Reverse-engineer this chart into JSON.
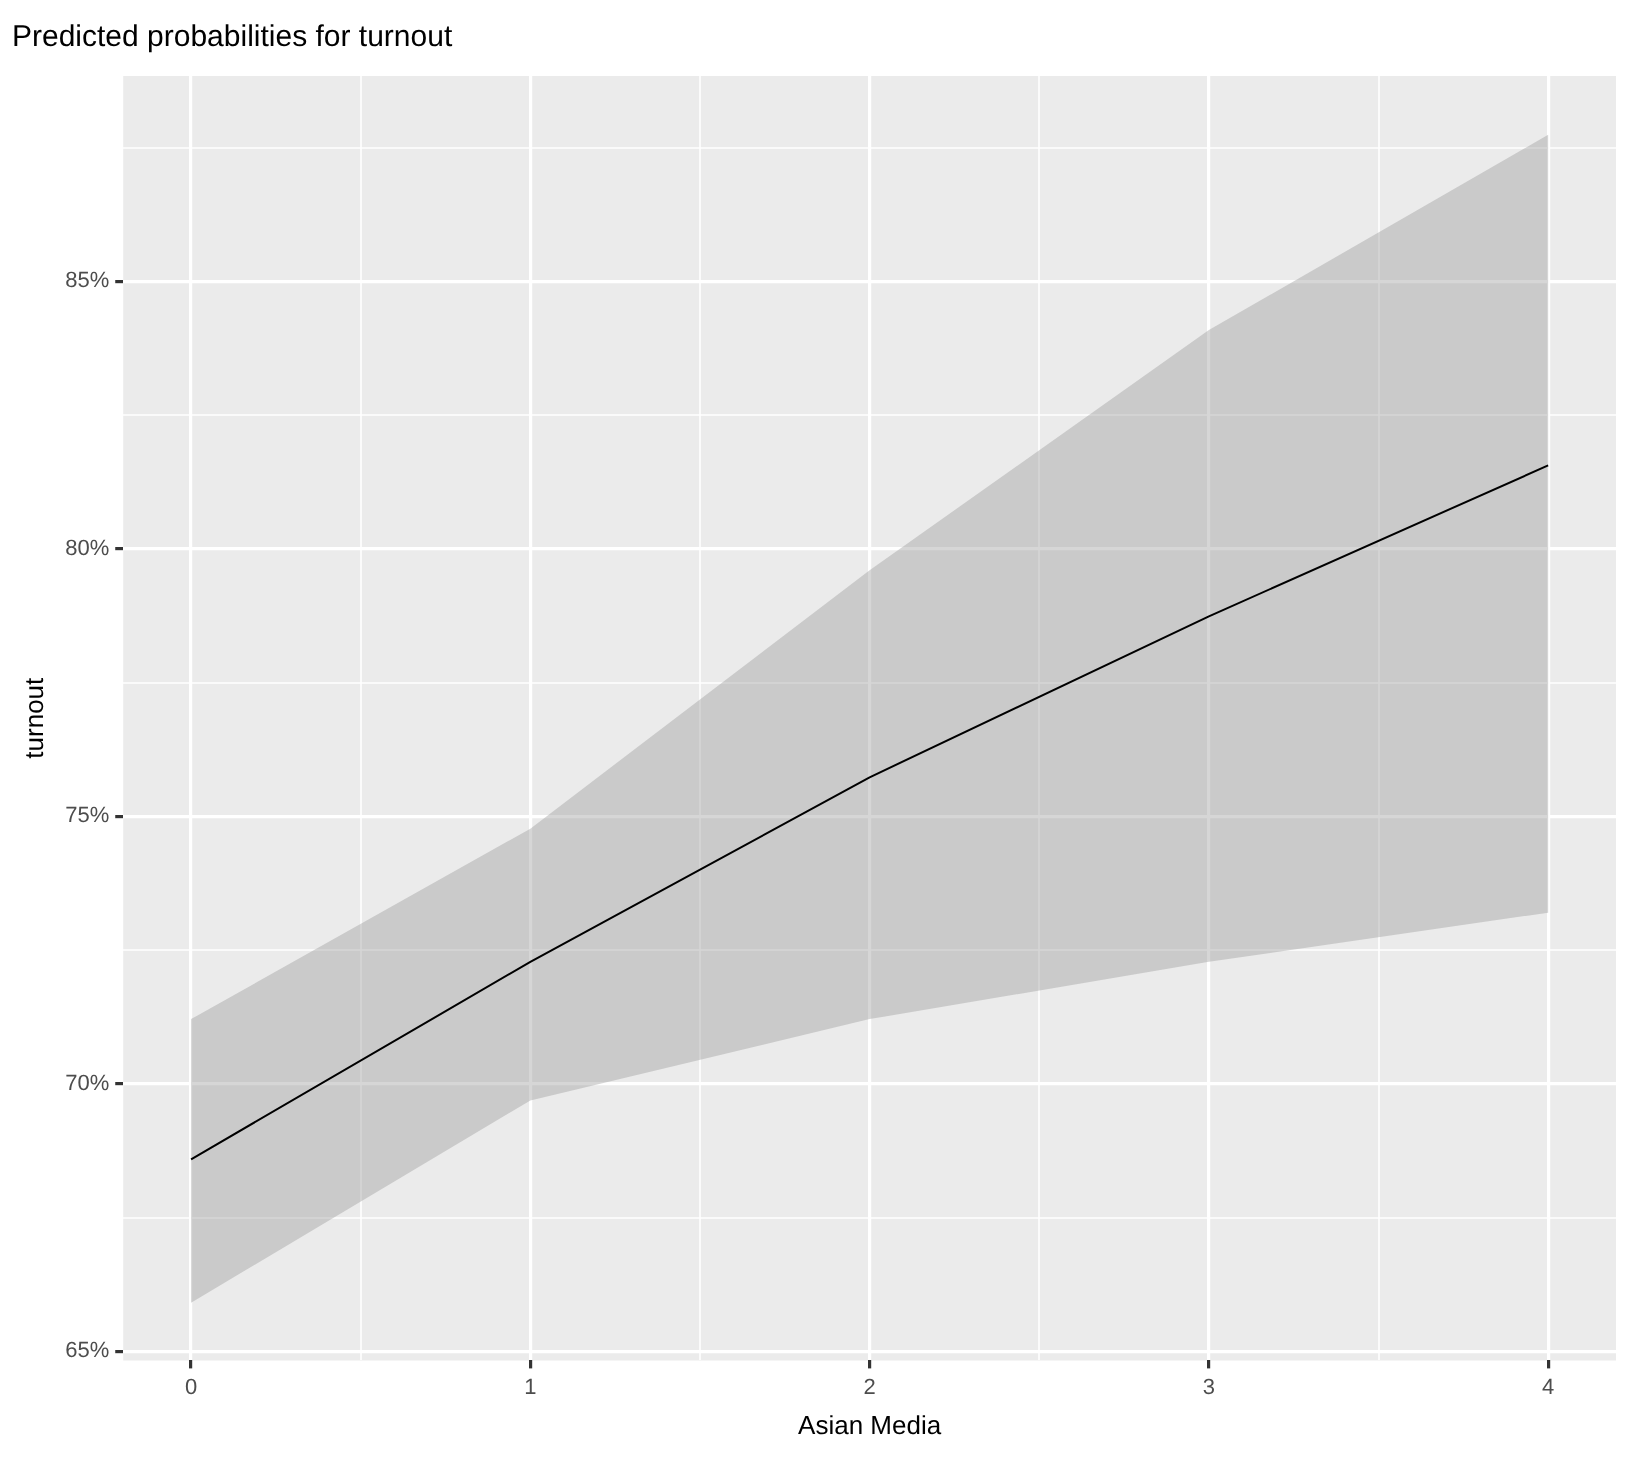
{
  "chart_data": {
    "type": "line",
    "title": "Predicted probabilities for turnout",
    "xlabel": "Asian Media",
    "ylabel": "turnout",
    "x": [
      0,
      1,
      2,
      3,
      4
    ],
    "series": [
      {
        "color": "#000000",
        "values": [
          68.59,
          72.28,
          75.73,
          78.74,
          81.56
        ],
        "lower": [
          65.91,
          69.69,
          71.21,
          72.28,
          73.2
        ],
        "upper": [
          71.21,
          74.77,
          79.6,
          84.09,
          87.74
        ]
      }
    ],
    "xlim": [
      -0.2,
      4.2
    ],
    "xticks": [
      0,
      {
        "value": 0.5,
        "label": null
      },
      1,
      {
        "value": 1.5,
        "label": null
      },
      2,
      {
        "value": 2.5,
        "label": null
      },
      3,
      {
        "value": 3.5,
        "label": null
      },
      4
    ],
    "ylim": [
      64.83,
      88.84
    ],
    "yticks": [
      {
        "value": 65,
        "label": "65%"
      },
      {
        "value": 67.5,
        "label": null
      },
      {
        "value": 70,
        "label": "70%"
      },
      {
        "value": 72.5,
        "label": null
      },
      {
        "value": 75,
        "label": "75%"
      },
      {
        "value": 77.5,
        "label": null
      },
      {
        "value": 80,
        "label": "80%"
      },
      {
        "value": 82.5,
        "label": null
      },
      {
        "value": 85,
        "label": "85%"
      },
      {
        "value": 87.5,
        "label": null
      }
    ],
    "grid": true,
    "marker": "none",
    "line_style": "solid"
  }
}
